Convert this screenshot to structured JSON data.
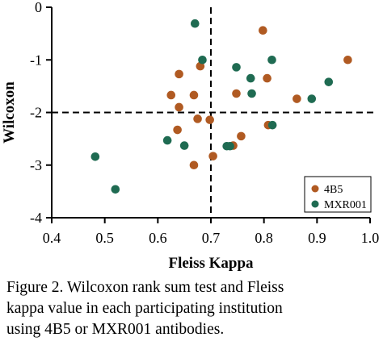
{
  "chart_data": {
    "type": "scatter",
    "xlabel": "Fleiss Kappa",
    "ylabel": "Wilcoxon",
    "xlim": [
      0.4,
      1.0
    ],
    "ylim": [
      -4,
      0
    ],
    "xticks": [
      "0.4",
      "0.5",
      "0.6",
      "0.7",
      "0.8",
      "0.9",
      "1.0"
    ],
    "yticks": [
      "0",
      "-1",
      "-2",
      "-3",
      "-4"
    ],
    "reference_lines": {
      "x": 0.7,
      "y": -2,
      "style": "dashed"
    },
    "grid": false,
    "legend_position": "bottom-right",
    "series": [
      {
        "name": "4B5",
        "color": "#b05a22",
        "points": [
          [
            0.625,
            -1.67
          ],
          [
            0.64,
            -1.27
          ],
          [
            0.64,
            -1.9
          ],
          [
            0.637,
            -2.33
          ],
          [
            0.668,
            -1.67
          ],
          [
            0.668,
            -3.0
          ],
          [
            0.675,
            -2.12
          ],
          [
            0.68,
            -1.12
          ],
          [
            0.698,
            -2.14
          ],
          [
            0.704,
            -2.83
          ],
          [
            0.742,
            -2.63
          ],
          [
            0.748,
            -1.64
          ],
          [
            0.757,
            -2.45
          ],
          [
            0.798,
            -0.44
          ],
          [
            0.806,
            -1.35
          ],
          [
            0.808,
            -2.24
          ],
          [
            0.862,
            -1.74
          ],
          [
            0.958,
            -1.0
          ]
        ]
      },
      {
        "name": "MXR001",
        "color": "#1f6b52",
        "points": [
          [
            0.482,
            -2.84
          ],
          [
            0.52,
            -3.46
          ],
          [
            0.618,
            -2.53
          ],
          [
            0.65,
            -2.63
          ],
          [
            0.67,
            -0.31
          ],
          [
            0.684,
            -1.0
          ],
          [
            0.73,
            -2.64
          ],
          [
            0.736,
            -2.64
          ],
          [
            0.748,
            -1.14
          ],
          [
            0.775,
            -1.35
          ],
          [
            0.777,
            -1.64
          ],
          [
            0.815,
            -1.0
          ],
          [
            0.816,
            -2.24
          ],
          [
            0.89,
            -1.74
          ],
          [
            0.922,
            -1.42
          ]
        ]
      }
    ]
  },
  "caption": {
    "line1": "Figure 2. Wilcoxon rank sum test and Fleiss",
    "line2": "kappa value in each participating institution",
    "line3": "using 4B5 or MXR001 antibodies."
  }
}
